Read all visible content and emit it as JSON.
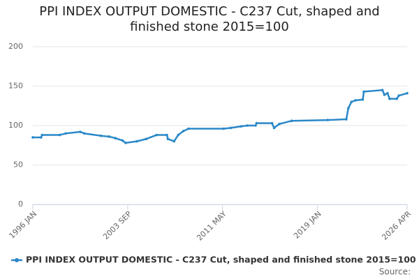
{
  "chart_data": {
    "type": "line",
    "title": "PPI INDEX OUTPUT DOMESTIC - C237 Cut, shaped and finished stone 2015=100",
    "x": [
      "1996 JAN",
      "1996 SEP",
      "1996 OCT",
      "1998 MAR",
      "1998 SEP",
      "1999 NOV",
      "2000 MAR",
      "2001 JUL",
      "2002 MAR",
      "2002 SEP",
      "2003 APR",
      "2003 JUL",
      "2004 JUN",
      "2005 MAR",
      "2006 JAN",
      "2006 NOV",
      "2006 DEC",
      "2007 JUN",
      "2007 OCT",
      "2008 MAR",
      "2008 AUG",
      "2011 JUN",
      "2012 JAN",
      "2012 NOV",
      "2013 MAY",
      "2014 JAN",
      "2014 FEB",
      "2015 MAY",
      "2015 JUL",
      "2015 DEC",
      "2016 DEC",
      "2019 NOV",
      "2021 MAY",
      "2021 JUL",
      "2021 OCT",
      "2022 FEB",
      "2022 SEP",
      "2022 OCT",
      "2024 APR",
      "2024 JUN",
      "2024 SEP",
      "2024 NOV",
      "2025 JUN",
      "2025 AUG",
      "2026 APR"
    ],
    "series": [
      {
        "name": "PPI INDEX OUTPUT DOMESTIC - C237 Cut, shaped and finished stone 2015=100",
        "color": "#2a88c8",
        "values": [
          85,
          85,
          88,
          88,
          90,
          92,
          90,
          87,
          86,
          84,
          81,
          78,
          80,
          83,
          88,
          88,
          83,
          80,
          88,
          93,
          96,
          96,
          97,
          99,
          100,
          100,
          103,
          103,
          97,
          102,
          106,
          107,
          108,
          122,
          130,
          132,
          133,
          143,
          145,
          139,
          141,
          134,
          134,
          138,
          141
        ]
      }
    ],
    "xlim": [
      "1996 JAN",
      "2026 APR"
    ],
    "xticks": [
      "1996 JAN",
      "2003 SEP",
      "2011 MAY",
      "2019 JAN",
      "2026 APR"
    ],
    "ylim": [
      0,
      200
    ],
    "yticks": [
      0,
      50,
      100,
      150,
      200
    ],
    "grid": true,
    "legend": "bottom",
    "source_label": "Source:"
  }
}
